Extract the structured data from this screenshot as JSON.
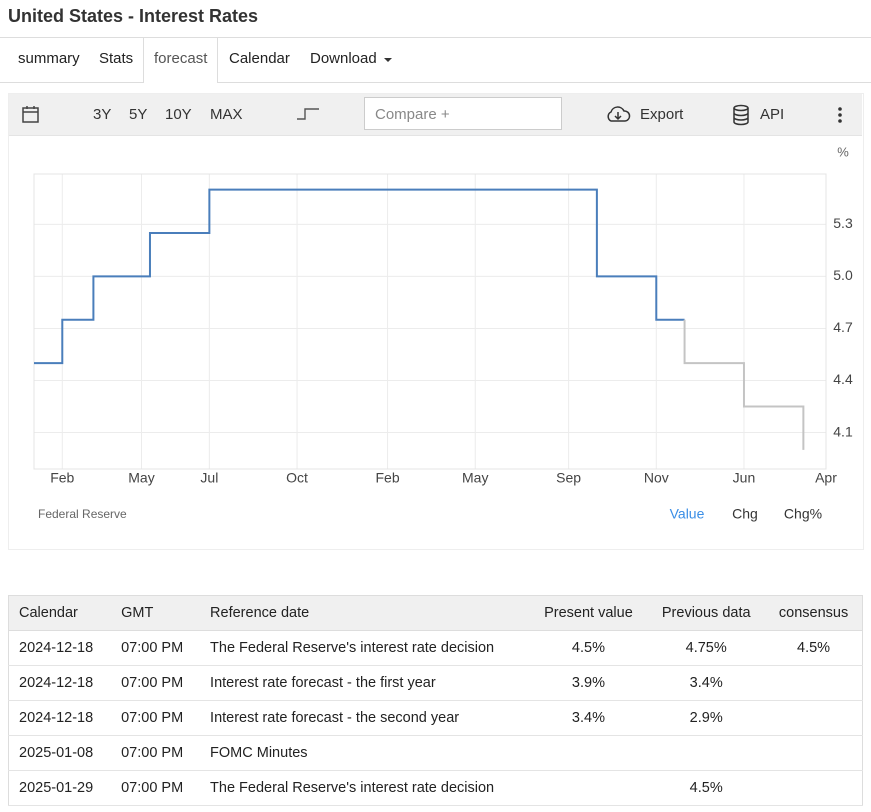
{
  "header": {
    "title": "United States - Interest Rates"
  },
  "tabs": [
    "summary",
    "Stats",
    "forecast",
    "Calendar",
    "Download"
  ],
  "toolbar": {
    "ranges": [
      "3Y",
      "5Y",
      "10Y",
      "MAX"
    ],
    "compare": "Compare +",
    "export": "Export",
    "api": "API"
  },
  "chart_data": {
    "type": "step-line",
    "y_unit": "%",
    "xlim": [
      0,
      28
    ],
    "xticks": [
      {
        "value": 1.0,
        "label": "Feb"
      },
      {
        "value": 3.8,
        "label": "May"
      },
      {
        "value": 6.2,
        "label": "Jul"
      },
      {
        "value": 9.3,
        "label": "Oct"
      },
      {
        "value": 12.5,
        "label": "Feb"
      },
      {
        "value": 15.6,
        "label": "May"
      },
      {
        "value": 18.9,
        "label": "Sep"
      },
      {
        "value": 22.0,
        "label": "Nov"
      },
      {
        "value": 25.1,
        "label": "Jun"
      },
      {
        "value": 28.0,
        "label": "Apr"
      }
    ],
    "ylim": [
      3.89,
      5.59
    ],
    "yticks": [
      5.3,
      {
        "value": 5.0,
        "label": "5.0"
      },
      4.7,
      4.4,
      4.1
    ],
    "grid": true,
    "series": [
      {
        "color": "#4a7ebb",
        "x": [
          0,
          1.0,
          2.1,
          4.1,
          6.2,
          19.9,
          22.0,
          23.0
        ],
        "values": [
          4.5,
          4.75,
          5.0,
          5.25,
          5.5,
          5.0,
          4.75,
          4.75
        ]
      },
      {
        "color": "#c4c4c4",
        "x": [
          23.0,
          23.0,
          25.1,
          27.2
        ],
        "values": [
          4.75,
          4.5,
          4.25,
          4.0
        ]
      }
    ],
    "source": "Federal Reserve",
    "modes": [
      "Value",
      "Chg",
      "Chg%"
    ]
  },
  "table": {
    "headers": [
      "Calendar",
      "GMT",
      "Reference date",
      "Present value",
      "Previous data",
      "consensus"
    ],
    "rows": [
      [
        "2024-12-18",
        "07:00 PM",
        "The Federal Reserve's interest rate decision",
        "4.5%",
        "4.75%",
        "4.5%"
      ],
      [
        "2024-12-18",
        "07:00 PM",
        "Interest rate forecast - the first year",
        "3.9%",
        "3.4%",
        null
      ],
      [
        "2024-12-18",
        "07:00 PM",
        "Interest rate forecast - the second year",
        "3.4%",
        "2.9%",
        null
      ],
      [
        "2025-01-08",
        "07:00 PM",
        "FOMC Minutes",
        null,
        null,
        null
      ],
      [
        "2025-01-29",
        "07:00 PM",
        "The Federal Reserve's interest rate decision",
        null,
        "4.5%",
        null
      ]
    ]
  }
}
